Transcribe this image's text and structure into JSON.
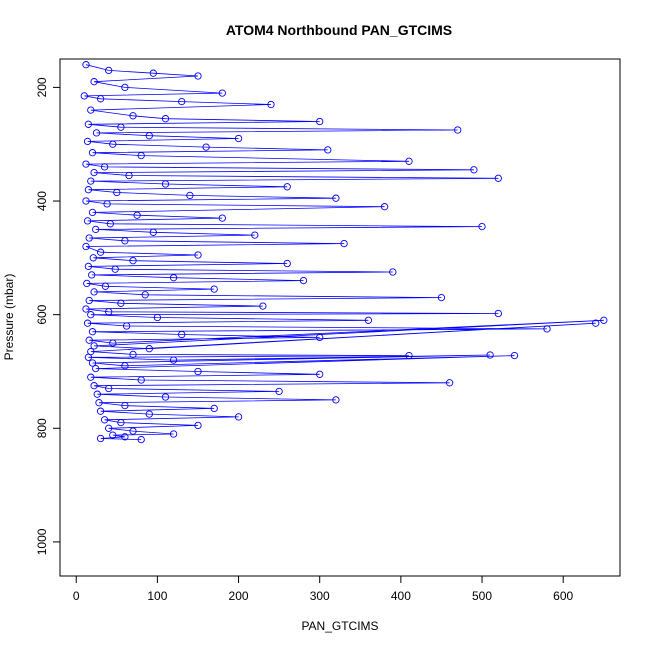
{
  "chart_data": {
    "type": "scatter",
    "title": "ATOM4 Northbound PAN_GTCIMS",
    "xlabel": "PAN_GTCIMS",
    "ylabel": "Pressure (mbar)",
    "xlim": [
      -20,
      670
    ],
    "ylim": [
      1060,
      150
    ],
    "y_axis_reversed": true,
    "x_ticks": [
      0,
      100,
      200,
      300,
      400,
      500,
      600
    ],
    "y_ticks": [
      200,
      400,
      600,
      800,
      1000
    ],
    "grid": false,
    "legend": "none",
    "style": "points-and-lines",
    "marker": "open-circle",
    "series": [
      {
        "color": "#0000ff",
        "x": [
          12,
          40,
          95,
          150,
          22,
          60,
          180,
          10,
          30,
          130,
          240,
          18,
          70,
          110,
          300,
          15,
          55,
          470,
          25,
          90,
          200,
          14,
          45,
          160,
          310,
          20,
          80,
          410,
          12,
          35,
          490,
          22,
          65,
          520,
          18,
          110,
          260,
          15,
          50,
          140,
          320,
          12,
          38,
          380,
          20,
          75,
          180,
          14,
          42,
          500,
          24,
          95,
          220,
          16,
          60,
          330,
          12,
          30,
          150,
          21,
          70,
          260,
          15,
          48,
          390,
          19,
          120,
          280,
          13,
          36,
          170,
          22,
          85,
          450,
          16,
          55,
          230,
          12,
          40,
          520,
          18,
          100,
          360,
          14,
          62,
          580,
          20,
          130,
          300,
          16,
          45,
          650,
          22,
          90,
          640,
          18,
          70,
          410,
          15,
          120,
          510,
          20,
          60,
          540,
          24,
          150,
          300,
          18,
          80,
          460,
          22,
          40,
          250,
          26,
          110,
          320,
          28,
          60,
          170,
          30,
          90,
          200,
          35,
          55,
          150,
          40,
          70,
          120,
          45,
          60,
          30,
          80
        ],
        "y": [
          160,
          170,
          175,
          180,
          190,
          200,
          210,
          215,
          220,
          225,
          230,
          240,
          250,
          255,
          260,
          265,
          270,
          275,
          280,
          285,
          290,
          295,
          300,
          305,
          310,
          315,
          320,
          330,
          335,
          340,
          345,
          350,
          355,
          360,
          365,
          370,
          375,
          380,
          385,
          390,
          395,
          400,
          405,
          410,
          420,
          425,
          430,
          435,
          440,
          445,
          450,
          455,
          460,
          465,
          470,
          475,
          480,
          490,
          495,
          500,
          505,
          510,
          515,
          520,
          525,
          530,
          535,
          540,
          545,
          550,
          555,
          560,
          565,
          570,
          575,
          580,
          585,
          590,
          595,
          598,
          600,
          605,
          610,
          615,
          620,
          625,
          630,
          635,
          640,
          645,
          650,
          610,
          655,
          660,
          615,
          665,
          670,
          672,
          675,
          680,
          671,
          685,
          690,
          672,
          695,
          700,
          705,
          710,
          715,
          720,
          725,
          730,
          735,
          740,
          745,
          750,
          755,
          760,
          765,
          770,
          775,
          780,
          785,
          790,
          795,
          800,
          805,
          810,
          812,
          815,
          818,
          820
        ]
      }
    ]
  }
}
